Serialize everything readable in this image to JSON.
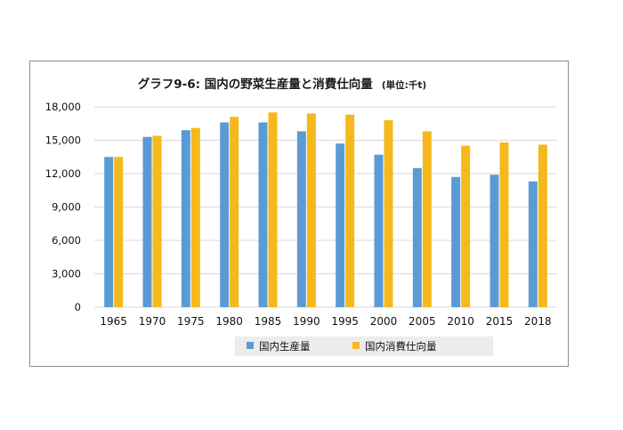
{
  "chart_data": {
    "type": "bar",
    "title": "グラフ9-6: 国内の野菜生産量と消費仕向量",
    "unit_note": "(単位:千t)",
    "xlabel": "",
    "ylabel": "",
    "categories": [
      "1965",
      "1970",
      "1975",
      "1980",
      "1985",
      "1990",
      "1995",
      "2000",
      "2005",
      "2010",
      "2015",
      "2018"
    ],
    "series": [
      {
        "name": "国内生産量",
        "color": "#5b9bd5",
        "values": [
          13500,
          15300,
          15900,
          16600,
          16600,
          15800,
          14700,
          13700,
          12500,
          11700,
          11900,
          11300
        ]
      },
      {
        "name": "国内消費仕向量",
        "color": "#f5b91d",
        "values": [
          13500,
          15400,
          16100,
          17100,
          17500,
          17400,
          17300,
          16800,
          15800,
          14500,
          14800,
          14600
        ]
      }
    ],
    "ylim": [
      0,
      18000
    ],
    "yticks": [
      0,
      3000,
      6000,
      9000,
      12000,
      15000,
      18000
    ],
    "ytick_labels": [
      "0",
      "3,000",
      "6,000",
      "9,000",
      "12,000",
      "15,000",
      "18,000"
    ],
    "grid": true,
    "legend_position": "bottom"
  }
}
